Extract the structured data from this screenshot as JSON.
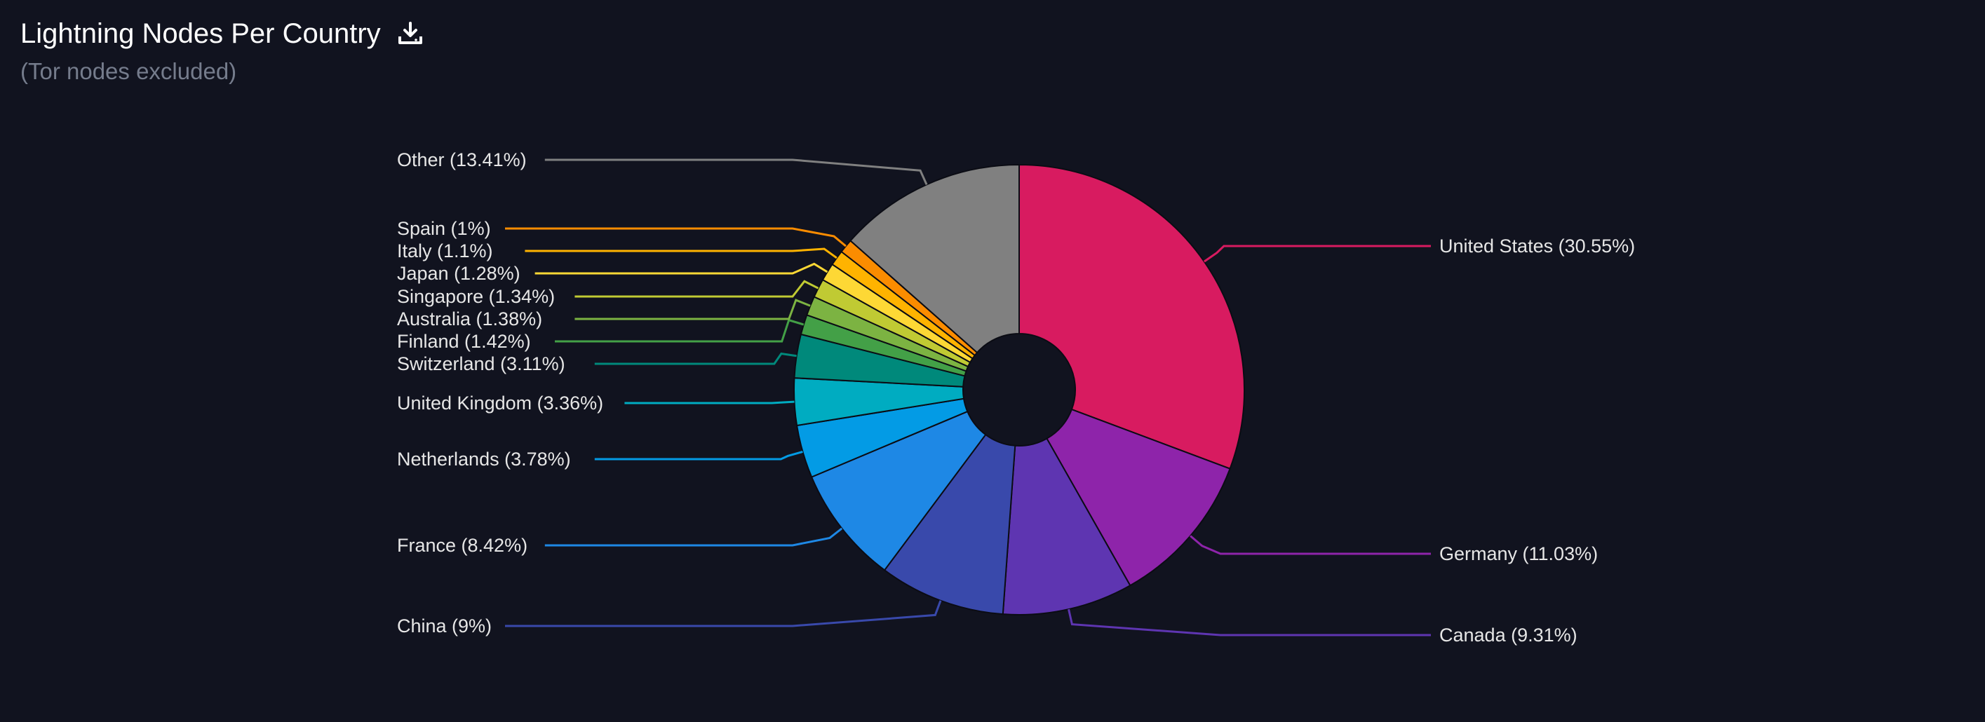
{
  "header": {
    "title": "Lightning Nodes Per Country",
    "subtitle": "(Tor nodes excluded)",
    "download_icon": "download-icon"
  },
  "chart_data": {
    "type": "pie",
    "donut": true,
    "start": "12 o'clock, clockwise",
    "legend": "none",
    "slices": [
      {
        "name": "United States",
        "label": "United States (30.55%)",
        "value": 30.55,
        "color": "#d81b60"
      },
      {
        "name": "Germany",
        "label": "Germany (11.03%)",
        "value": 11.03,
        "color": "#8e24aa"
      },
      {
        "name": "Canada",
        "label": "Canada (9.31%)",
        "value": 9.31,
        "color": "#5e35b1"
      },
      {
        "name": "China",
        "label": "China (9%)",
        "value": 9,
        "color": "#3949ab"
      },
      {
        "name": "France",
        "label": "France (8.42%)",
        "value": 8.42,
        "color": "#1e88e5"
      },
      {
        "name": "Netherlands",
        "label": "Netherlands (3.78%)",
        "value": 3.78,
        "color": "#039be5"
      },
      {
        "name": "United Kingdom",
        "label": "United Kingdom (3.36%)",
        "value": 3.36,
        "color": "#00acc1"
      },
      {
        "name": "Switzerland",
        "label": "Switzerland (3.11%)",
        "value": 3.11,
        "color": "#00897b"
      },
      {
        "name": "Finland",
        "label": "Finland (1.42%)",
        "value": 1.42,
        "color": "#43a047"
      },
      {
        "name": "Australia",
        "label": "Australia (1.38%)",
        "value": 1.38,
        "color": "#7cb342"
      },
      {
        "name": "Singapore",
        "label": "Singapore (1.34%)",
        "value": 1.34,
        "color": "#c0ca33"
      },
      {
        "name": "Japan",
        "label": "Japan (1.28%)",
        "value": 1.28,
        "color": "#fdd835"
      },
      {
        "name": "Italy",
        "label": "Italy (1.1%)",
        "value": 1.1,
        "color": "#ffb300"
      },
      {
        "name": "Spain",
        "label": "Spain (1%)",
        "value": 1,
        "color": "#fb8c00"
      },
      {
        "name": "Other",
        "label": "Other (13.41%)",
        "value": 13.41,
        "color": "#808080"
      }
    ]
  }
}
